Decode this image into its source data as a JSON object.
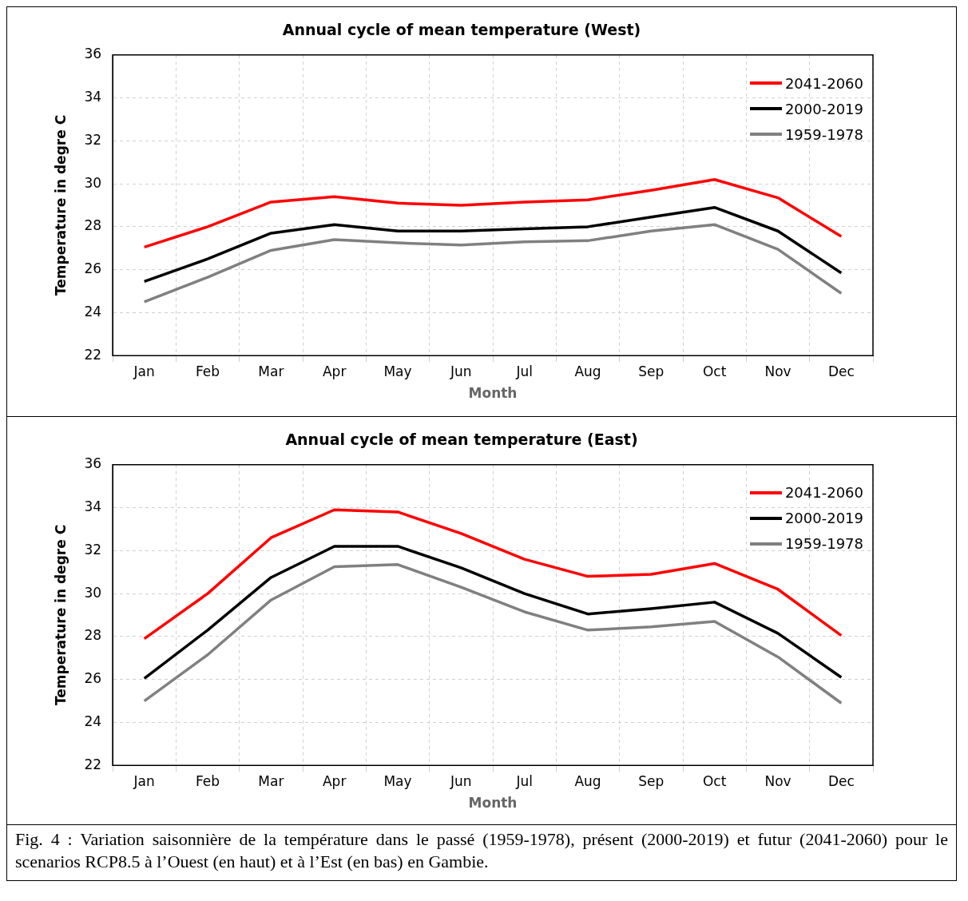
{
  "chart_data": [
    {
      "type": "line",
      "title": "Annual cycle of mean temperature (West)",
      "xlabel": "Month",
      "ylabel": "Temperature in degre C",
      "categories": [
        "Jan",
        "Feb",
        "Mar",
        "Apr",
        "May",
        "Jun",
        "Jul",
        "Aug",
        "Sep",
        "Oct",
        "Nov",
        "Dec"
      ],
      "ylim": [
        22,
        36
      ],
      "yticks": [
        22,
        24,
        26,
        28,
        30,
        32,
        34,
        36
      ],
      "grid": true,
      "legend": "top right",
      "marker": "none",
      "line_style": "solid",
      "series": [
        {
          "name": "2041-2060",
          "color": "#ff0000",
          "values": [
            27.05,
            28.0,
            29.15,
            29.4,
            29.1,
            29.0,
            29.15,
            29.25,
            29.7,
            30.2,
            29.35,
            27.55
          ]
        },
        {
          "name": "2000-2019",
          "color": "#000000",
          "values": [
            25.45,
            26.5,
            27.7,
            28.1,
            27.8,
            27.8,
            27.9,
            28.0,
            28.45,
            28.9,
            27.8,
            25.85
          ]
        },
        {
          "name": "1959-1978",
          "color": "#808080",
          "values": [
            24.5,
            25.65,
            26.9,
            27.4,
            27.25,
            27.15,
            27.3,
            27.35,
            27.8,
            28.1,
            26.95,
            24.9
          ]
        }
      ]
    },
    {
      "type": "line",
      "title": "Annual cycle of mean temperature (East)",
      "xlabel": "Month",
      "ylabel": "Temperature in degre C",
      "categories": [
        "Jan",
        "Feb",
        "Mar",
        "Apr",
        "May",
        "Jun",
        "Jul",
        "Aug",
        "Sep",
        "Oct",
        "Nov",
        "Dec"
      ],
      "ylim": [
        22,
        36
      ],
      "yticks": [
        22,
        24,
        26,
        28,
        30,
        32,
        34,
        36
      ],
      "grid": true,
      "legend": "top right",
      "marker": "none",
      "line_style": "solid",
      "annotations": [
        "Fig. 4 : Variation saisonnière de la température dans le passé (1959-1978), présent (2000-2019) et futur (2041-2060) pour le scenarios RCP8.5 à l’Ouest (en haut) et à l’Est (en bas) en Gambie."
      ],
      "series": [
        {
          "name": "2041-2060",
          "color": "#ff0000",
          "values": [
            27.9,
            30.0,
            32.6,
            33.9,
            33.8,
            32.8,
            31.6,
            30.8,
            30.9,
            31.4,
            30.2,
            28.05
          ]
        },
        {
          "name": "2000-2019",
          "color": "#000000",
          "values": [
            26.05,
            28.3,
            30.75,
            32.2,
            32.2,
            31.2,
            30.0,
            29.05,
            29.3,
            29.6,
            28.15,
            26.1
          ]
        },
        {
          "name": "1959-1978",
          "color": "#808080",
          "values": [
            25.0,
            27.15,
            29.7,
            31.25,
            31.35,
            30.3,
            29.15,
            28.3,
            28.45,
            28.7,
            27.05,
            24.9
          ]
        }
      ]
    }
  ]
}
